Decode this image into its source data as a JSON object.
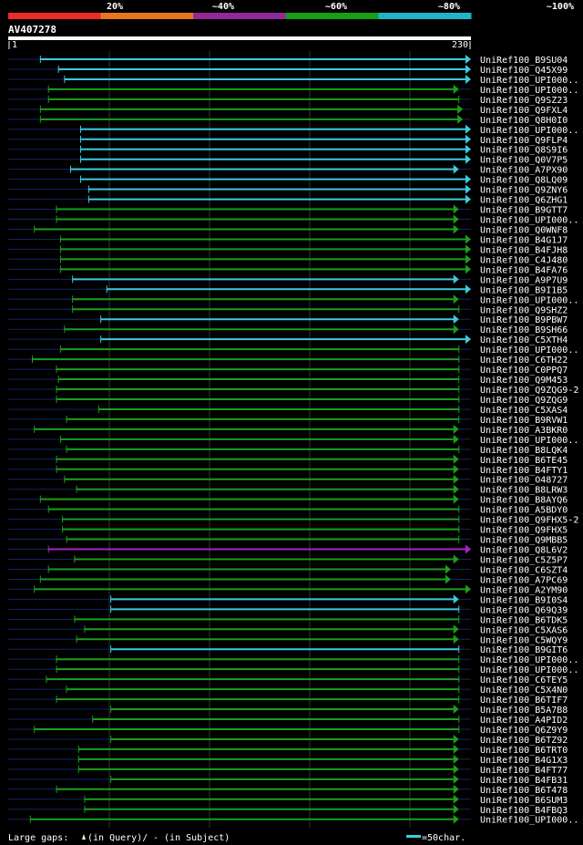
{
  "scale": {
    "labels": [
      "20%",
      "~40%",
      "~60%",
      "~80%",
      "~100%"
    ],
    "colors": [
      "#ee2a2a",
      "#e8761d",
      "#93279b",
      "#13a015",
      "#1fb5c4"
    ]
  },
  "query": {
    "name": "AV407278",
    "start": "1",
    "end": "230",
    "length": 230
  },
  "grid_positions": [
    120,
    230,
    340,
    450
  ],
  "colors": {
    "back": "#000000",
    "query_line": "#152565",
    "cyan": "#3ccbdd",
    "green": "#1d9e1d",
    "purple": "#a626c2",
    "marker": "#ffffc8",
    "grid": "#333333"
  },
  "footer": {
    "gaps_label": "Large gaps:",
    "query_gap": "(in Query)/",
    "subject_gap": "- (in Subject)",
    "scale_text": "=50char."
  },
  "hits": [
    {
      "name": "UniRef100_B9SU04",
      "start": 16,
      "end": 230,
      "color": "cyan",
      "arrow": true
    },
    {
      "name": "UniRef100_Q45X99",
      "start": 25,
      "end": 230,
      "color": "cyan",
      "arrow": true
    },
    {
      "name": "UniRef100_UPI000..",
      "start": 28,
      "end": 230,
      "color": "cyan",
      "arrow": true
    },
    {
      "name": "UniRef100_UPI000..",
      "start": 20,
      "end": 224,
      "color": "green",
      "arrow": true
    },
    {
      "name": "UniRef100_Q9SZ23",
      "start": 20,
      "end": 224,
      "color": "green",
      "arrow": false
    },
    {
      "name": "UniRef100_Q9FXL4",
      "start": 16,
      "end": 226,
      "color": "green",
      "arrow": true
    },
    {
      "name": "UniRef100_Q8H0I0",
      "start": 16,
      "end": 226,
      "color": "green",
      "arrow": true
    },
    {
      "name": "UniRef100_UPI000..",
      "start": 36,
      "end": 230,
      "color": "cyan",
      "arrow": true
    },
    {
      "name": "UniRef100_Q9FLP4",
      "start": 36,
      "end": 230,
      "color": "cyan",
      "arrow": true
    },
    {
      "name": "UniRef100_Q8S9I6",
      "start": 36,
      "end": 230,
      "color": "cyan",
      "arrow": true
    },
    {
      "name": "UniRef100_Q0V7P5",
      "start": 36,
      "end": 230,
      "color": "cyan",
      "arrow": true
    },
    {
      "name": "UniRef100_A7PX90",
      "start": 31,
      "end": 224,
      "color": "cyan",
      "arrow": true
    },
    {
      "name": "UniRef100_Q8LQ09",
      "start": 36,
      "end": 230,
      "color": "cyan",
      "arrow": true
    },
    {
      "name": "UniRef100_Q9ZNY6",
      "start": 40,
      "end": 230,
      "color": "cyan",
      "arrow": true
    },
    {
      "name": "UniRef100_Q6ZHG1",
      "start": 40,
      "end": 230,
      "color": "cyan",
      "arrow": true
    },
    {
      "name": "UniRef100_B9GTT7",
      "start": 24,
      "end": 224,
      "color": "green",
      "arrow": true
    },
    {
      "name": "UniRef100_UPI000..",
      "start": 24,
      "end": 224,
      "color": "green",
      "arrow": true
    },
    {
      "name": "UniRef100_Q0WNF8",
      "start": 13,
      "end": 224,
      "color": "green",
      "arrow": true
    },
    {
      "name": "UniRef100_B4G1J7",
      "start": 26,
      "end": 230,
      "color": "green",
      "arrow": true
    },
    {
      "name": "UniRef100_B4FJH8",
      "start": 26,
      "end": 230,
      "color": "green",
      "arrow": true
    },
    {
      "name": "UniRef100_C4J480",
      "start": 26,
      "end": 230,
      "color": "green",
      "arrow": true
    },
    {
      "name": "UniRef100_B4FA76",
      "start": 26,
      "end": 230,
      "color": "green",
      "arrow": true
    },
    {
      "name": "UniRef100_A9P7U9",
      "start": 32,
      "end": 224,
      "color": "cyan",
      "arrow": true
    },
    {
      "name": "UniRef100_B9I1B5",
      "start": 49,
      "end": 230,
      "color": "cyan",
      "arrow": true
    },
    {
      "name": "UniRef100_UPI000..",
      "start": 32,
      "end": 224,
      "color": "green",
      "arrow": true
    },
    {
      "name": "UniRef100_Q9SHZ2",
      "start": 32,
      "end": 224,
      "color": "green",
      "arrow": false
    },
    {
      "name": "UniRef100_B9PBW7",
      "start": 46,
      "end": 224,
      "color": "cyan",
      "arrow": true
    },
    {
      "name": "UniRef100_B9SH66",
      "start": 28,
      "end": 224,
      "color": "green",
      "arrow": true
    },
    {
      "name": "UniRef100_C5XTH4",
      "start": 46,
      "end": 230,
      "color": "cyan",
      "arrow": true
    },
    {
      "name": "UniRef100_UPI000..",
      "start": 26,
      "end": 224,
      "color": "green",
      "arrow": false
    },
    {
      "name": "UniRef100_C6TH22",
      "start": 12,
      "end": 224,
      "color": "green",
      "arrow": false
    },
    {
      "name": "UniRef100_C0PPQ7",
      "start": 24,
      "end": 224,
      "color": "green",
      "arrow": false
    },
    {
      "name": "UniRef100_Q9M453",
      "start": 25,
      "end": 224,
      "color": "green",
      "arrow": false
    },
    {
      "name": "UniRef100_Q9ZQG9-2",
      "start": 24,
      "end": 224,
      "color": "green",
      "arrow": false
    },
    {
      "name": "UniRef100_Q9ZQG9",
      "start": 24,
      "end": 224,
      "color": "green",
      "arrow": false
    },
    {
      "name": "UniRef100_C5XAS4",
      "start": 45,
      "end": 224,
      "color": "green",
      "arrow": false
    },
    {
      "name": "UniRef100_B9RVW1",
      "start": 29,
      "end": 224,
      "color": "green",
      "arrow": false
    },
    {
      "name": "UniRef100_A3BKR0",
      "start": 13,
      "end": 224,
      "color": "green",
      "arrow": true
    },
    {
      "name": "UniRef100_UPI000..",
      "start": 26,
      "end": 224,
      "color": "green",
      "arrow": true
    },
    {
      "name": "UniRef100_B8LQK4",
      "start": 29,
      "end": 224,
      "color": "green",
      "arrow": false
    },
    {
      "name": "UniRef100_B6TE45",
      "start": 24,
      "end": 224,
      "color": "green",
      "arrow": true
    },
    {
      "name": "UniRef100_B4FTY1",
      "start": 24,
      "end": 224,
      "color": "green",
      "arrow": true
    },
    {
      "name": "UniRef100_O48727",
      "start": 28,
      "end": 224,
      "color": "green",
      "arrow": true
    },
    {
      "name": "UniRef100_B8LRW3",
      "start": 34,
      "end": 224,
      "color": "green",
      "arrow": true
    },
    {
      "name": "UniRef100_B8AYQ6",
      "start": 16,
      "end": 224,
      "color": "green",
      "arrow": true
    },
    {
      "name": "UniRef100_A5BDY0",
      "start": 20,
      "end": 224,
      "color": "green",
      "arrow": false
    },
    {
      "name": "UniRef100_Q9FHX5-2",
      "start": 27,
      "end": 224,
      "color": "green",
      "arrow": false
    },
    {
      "name": "UniRef100_Q9FHX5",
      "start": 27,
      "end": 224,
      "color": "green",
      "arrow": false
    },
    {
      "name": "UniRef100_Q9MBB5",
      "start": 29,
      "end": 224,
      "color": "green",
      "arrow": false
    },
    {
      "name": "UniRef100_Q8L6V2",
      "start": 20,
      "end": 230,
      "color": "purple",
      "arrow": true
    },
    {
      "name": "UniRef100_C5Z5P7",
      "start": 33,
      "end": 224,
      "color": "green",
      "arrow": true
    },
    {
      "name": "UniRef100_C6SZT4",
      "start": 20,
      "end": 220,
      "color": "green",
      "arrow": true
    },
    {
      "name": "UniRef100_A7PC69",
      "start": 16,
      "end": 220,
      "color": "green",
      "arrow": true
    },
    {
      "name": "UniRef100_A2YM90",
      "start": 13,
      "end": 230,
      "color": "green",
      "arrow": true
    },
    {
      "name": "UniRef100_B9I0S4",
      "start": 51,
      "end": 224,
      "color": "cyan",
      "arrow": true
    },
    {
      "name": "UniRef100_Q69Q39",
      "start": 51,
      "end": 224,
      "color": "cyan",
      "arrow": false
    },
    {
      "name": "UniRef100_B6TDK5",
      "start": 33,
      "end": 224,
      "color": "green",
      "arrow": false
    },
    {
      "name": "UniRef100_C5XAS6",
      "start": 38,
      "end": 224,
      "color": "green",
      "arrow": true
    },
    {
      "name": "UniRef100_C5WQY9",
      "start": 34,
      "end": 224,
      "color": "green",
      "arrow": true
    },
    {
      "name": "UniRef100_B9GIT6",
      "start": 51,
      "end": 224,
      "color": "cyan",
      "arrow": false
    },
    {
      "name": "UniRef100_UPI000..",
      "start": 24,
      "end": 224,
      "color": "green",
      "arrow": false
    },
    {
      "name": "UniRef100_UPI000..",
      "start": 24,
      "end": 224,
      "color": "green",
      "arrow": false
    },
    {
      "name": "UniRef100_C6TEY5",
      "start": 19,
      "end": 224,
      "color": "green",
      "arrow": false
    },
    {
      "name": "UniRef100_C5X4N0",
      "start": 29,
      "end": 224,
      "color": "green",
      "arrow": false
    },
    {
      "name": "UniRef100_B6TIF7",
      "start": 24,
      "end": 224,
      "color": "green",
      "arrow": false
    },
    {
      "name": "UniRef100_B5A7B8",
      "start": 51,
      "end": 224,
      "color": "green",
      "arrow": true
    },
    {
      "name": "UniRef100_A4PID2",
      "start": 42,
      "end": 224,
      "color": "green",
      "arrow": false
    },
    {
      "name": "UniRef100_Q6Z9Y9",
      "start": 13,
      "end": 224,
      "color": "green",
      "arrow": false
    },
    {
      "name": "UniRef100_B6TZ92",
      "start": 51,
      "end": 224,
      "color": "green",
      "arrow": true
    },
    {
      "name": "UniRef100_B6TRT0",
      "start": 35,
      "end": 224,
      "color": "green",
      "arrow": true
    },
    {
      "name": "UniRef100_B4G1X3",
      "start": 35,
      "end": 224,
      "color": "green",
      "arrow": true
    },
    {
      "name": "UniRef100_B4FT77",
      "start": 35,
      "end": 224,
      "color": "green",
      "arrow": true
    },
    {
      "name": "UniRef100_B4FB31",
      "start": 51,
      "end": 224,
      "color": "green",
      "arrow": true
    },
    {
      "name": "UniRef100_B6T478",
      "start": 24,
      "end": 224,
      "color": "green",
      "arrow": true
    },
    {
      "name": "UniRef100_B6SUM3",
      "start": 38,
      "end": 224,
      "color": "green",
      "arrow": true
    },
    {
      "name": "UniRef100_B4FBQ3",
      "start": 38,
      "end": 224,
      "color": "green",
      "arrow": true
    },
    {
      "name": "UniRef100_UPI000..",
      "start": 11,
      "end": 224,
      "color": "green",
      "arrow": true
    }
  ]
}
